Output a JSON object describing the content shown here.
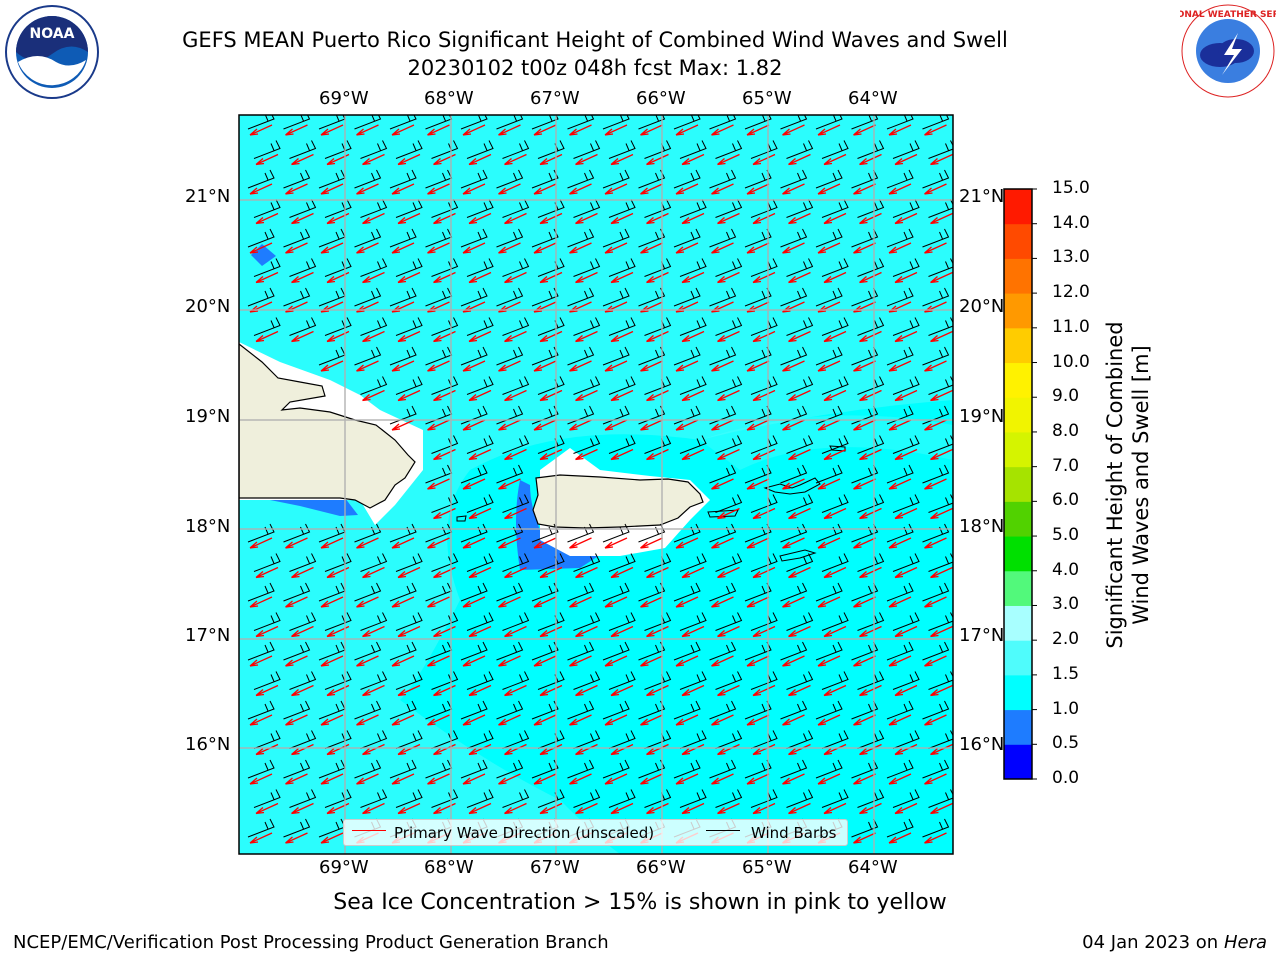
{
  "title_line1": "GEFS MEAN Puerto Rico Significant Height of Combined Wind Waves and Swell",
  "title_line2": "20230102 t00z 048h fcst   Max: 1.82",
  "logos": {
    "left": "NOAA",
    "right_text": "NATIONAL WEATHER SERVICE"
  },
  "axes": {
    "lon_labels": [
      "69°W",
      "68°W",
      "67°W",
      "66°W",
      "65°W",
      "64°W"
    ],
    "lat_labels": [
      "21°N",
      "20°N",
      "19°N",
      "18°N",
      "17°N",
      "16°N"
    ]
  },
  "legend": {
    "wave_label": "Primary Wave Direction (unscaled)",
    "wind_label": "Wind Barbs",
    "wave_color": "#ff0000",
    "wind_color": "#000000"
  },
  "colorbar": {
    "title_line1": "Significant Height of Combined",
    "title_line2": "Wind Waves and Swell [m]",
    "ticks": [
      "0.0",
      "0.5",
      "1.0",
      "1.5",
      "2.0",
      "3.0",
      "4.0",
      "5.0",
      "6.0",
      "7.0",
      "8.0",
      "9.0",
      "10.0",
      "11.0",
      "12.0",
      "13.0",
      "14.0",
      "15.0"
    ],
    "colors": [
      "#0000ff",
      "#1e7cff",
      "#00ffff",
      "#4ffcfc",
      "#a8ffff",
      "#52f97b",
      "#00e000",
      "#51d200",
      "#a6e300",
      "#d5f400",
      "#f1f400",
      "#fff200",
      "#ffcc00",
      "#ff9900",
      "#ff7300",
      "#ff4a00",
      "#ff1a00"
    ]
  },
  "caption": "Sea Ice Concentration > 15% is shown in pink to yellow",
  "footer_left": "NCEP/EMC/Verification Post Processing Product Generation Branch",
  "footer_right_date": "04 Jan 2023 on ",
  "footer_right_host": "Hera",
  "map_colors": {
    "ocean": "#00ffff",
    "ocean_light": "#4ffcfc",
    "shallow": "#1e7cff",
    "land": "#efefdc",
    "grid": "#b0b0b0"
  }
}
